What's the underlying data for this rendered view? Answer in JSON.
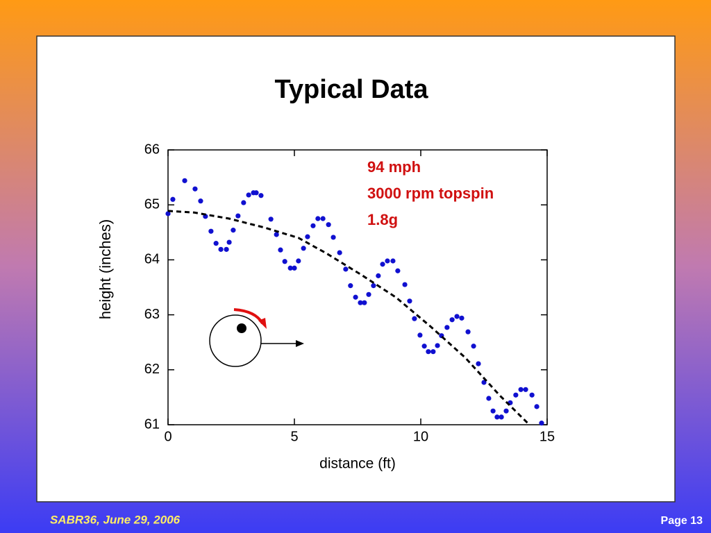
{
  "chart_data": {
    "type": "scatter",
    "title": "Typical Data",
    "xlabel": "distance (ft)",
    "ylabel": "height (inches)",
    "annotations": [
      "94 mph",
      "3000 rpm topspin",
      "1.8g"
    ],
    "xlim": [
      0,
      15
    ],
    "ylim": [
      61,
      66
    ],
    "xticks": [
      0,
      5,
      10,
      15
    ],
    "yticks": [
      61,
      62,
      63,
      64,
      65,
      66
    ],
    "series": [
      {
        "type": "scatter",
        "color": "#1010d0",
        "x": [
          0,
          0.19,
          0.66,
          1.07,
          1.29,
          1.48,
          1.7,
          1.9,
          2.09,
          2.31,
          2.42,
          2.58,
          2.77,
          2.99,
          3.19,
          3.38,
          3.49,
          3.68,
          4.07,
          4.29,
          4.45,
          4.62,
          4.84,
          5.0,
          5.16,
          5.36,
          5.52,
          5.74,
          5.93,
          6.13,
          6.35,
          6.54,
          6.79,
          7.03,
          7.22,
          7.42,
          7.61,
          7.77,
          7.94,
          8.13,
          8.32,
          8.49,
          8.68,
          8.9,
          9.09,
          9.37,
          9.56,
          9.75,
          9.97,
          10.14,
          10.3,
          10.49,
          10.66,
          10.82,
          11.04,
          11.24,
          11.43,
          11.62,
          11.87,
          12.09,
          12.28,
          12.5,
          12.69,
          12.86,
          13.02,
          13.19,
          13.38,
          13.54,
          13.76,
          13.96,
          14.15,
          14.4,
          14.59,
          14.78
        ],
        "values": [
          64.84,
          65.1,
          65.44,
          65.29,
          65.07,
          64.79,
          64.52,
          64.3,
          64.19,
          64.19,
          64.32,
          64.54,
          64.8,
          65.04,
          65.18,
          65.22,
          65.22,
          65.17,
          64.74,
          64.46,
          64.18,
          63.97,
          63.85,
          63.85,
          63.98,
          64.21,
          64.42,
          64.62,
          64.75,
          64.75,
          64.64,
          64.41,
          64.13,
          63.83,
          63.53,
          63.32,
          63.22,
          63.22,
          63.37,
          63.53,
          63.71,
          63.92,
          63.98,
          63.98,
          63.8,
          63.55,
          63.25,
          62.93,
          62.63,
          62.43,
          62.33,
          62.33,
          62.44,
          62.62,
          62.77,
          62.91,
          62.97,
          62.94,
          62.69,
          62.43,
          62.11,
          61.77,
          61.48,
          61.25,
          61.14,
          61.14,
          61.25,
          61.4,
          61.54,
          61.64,
          61.64,
          61.54,
          61.33,
          61.03
        ]
      },
      {
        "type": "line",
        "color": "#000000",
        "dashed": true,
        "x": [
          0,
          1.04,
          2.42,
          3.79,
          5.16,
          6.26,
          7.64,
          9.01,
          10.38,
          11.76,
          13.13,
          14.23
        ],
        "values": [
          64.89,
          64.86,
          64.75,
          64.59,
          64.4,
          64.12,
          63.73,
          63.32,
          62.79,
          62.22,
          61.53,
          61.03
        ]
      }
    ]
  },
  "footer": {
    "left": "SABR36, June 29, 2006",
    "right": "Page 13"
  }
}
